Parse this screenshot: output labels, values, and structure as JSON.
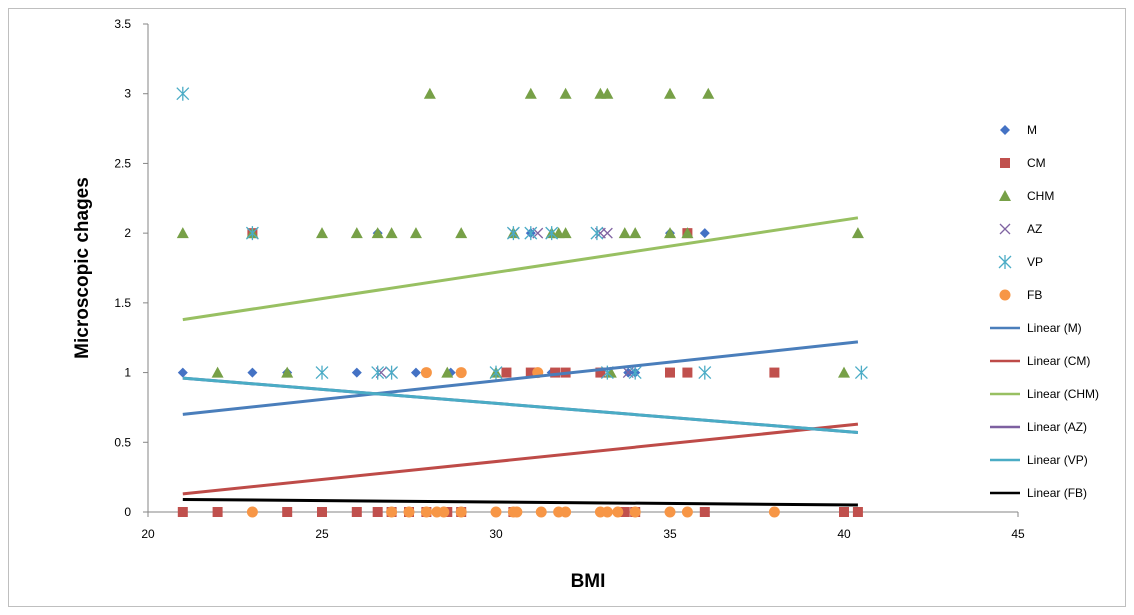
{
  "chart_data": {
    "type": "scatter",
    "title": "",
    "xlabel": "BMI",
    "ylabel": "Microscopic chages",
    "xlim": [
      20,
      45
    ],
    "ylim": [
      0,
      3.5
    ],
    "xticks": [
      20,
      25,
      30,
      35,
      40,
      45
    ],
    "yticks": [
      0,
      0.5,
      1,
      1.5,
      2,
      2.5,
      3,
      3.5
    ],
    "xtick_labels": [
      "20",
      "25",
      "30",
      "35",
      "40",
      "45"
    ],
    "ytick_labels": [
      "0",
      "0.5",
      "1",
      "1.5",
      "2",
      "2.5",
      "3",
      "3.5"
    ],
    "grid": false,
    "legend_position": "right",
    "series": [
      {
        "name": "M",
        "marker": "diamond",
        "color": "#4472c4",
        "points": [
          [
            21,
            1
          ],
          [
            23,
            1
          ],
          [
            24,
            1
          ],
          [
            26,
            1
          ],
          [
            26.6,
            2
          ],
          [
            27.7,
            1
          ],
          [
            28.7,
            1
          ],
          [
            30.3,
            1
          ],
          [
            31,
            2
          ],
          [
            31.6,
            1
          ],
          [
            33,
            1
          ],
          [
            33.8,
            1
          ],
          [
            34,
            1
          ],
          [
            35,
            2
          ],
          [
            36,
            2
          ]
        ]
      },
      {
        "name": "CM",
        "marker": "square",
        "color": "#c0504d",
        "points": [
          [
            21,
            0
          ],
          [
            22,
            0
          ],
          [
            23,
            2
          ],
          [
            24,
            0
          ],
          [
            25,
            0
          ],
          [
            26,
            0
          ],
          [
            26.6,
            0
          ],
          [
            27,
            0
          ],
          [
            27.5,
            0
          ],
          [
            28,
            0
          ],
          [
            28.6,
            0
          ],
          [
            29,
            0
          ],
          [
            30.3,
            1
          ],
          [
            30.5,
            0
          ],
          [
            31,
            1
          ],
          [
            31.7,
            1
          ],
          [
            32,
            1
          ],
          [
            33,
            1
          ],
          [
            33.7,
            0
          ],
          [
            34,
            0
          ],
          [
            35,
            1
          ],
          [
            35.5,
            2
          ],
          [
            35.5,
            1
          ],
          [
            36,
            0
          ],
          [
            38,
            1
          ],
          [
            40,
            0
          ],
          [
            40.4,
            0
          ]
        ]
      },
      {
        "name": "CHM",
        "marker": "triangle",
        "color": "#77a047",
        "points": [
          [
            21,
            2
          ],
          [
            22,
            1
          ],
          [
            23,
            2
          ],
          [
            24,
            1
          ],
          [
            25,
            2
          ],
          [
            26,
            2
          ],
          [
            26.6,
            2
          ],
          [
            27,
            2
          ],
          [
            27.7,
            2
          ],
          [
            28.1,
            3
          ],
          [
            28.6,
            1
          ],
          [
            29,
            2
          ],
          [
            30,
            1
          ],
          [
            30.5,
            2
          ],
          [
            31,
            3
          ],
          [
            31.6,
            2
          ],
          [
            31.8,
            2
          ],
          [
            32,
            3
          ],
          [
            32,
            2
          ],
          [
            33,
            3
          ],
          [
            33.2,
            3
          ],
          [
            33.3,
            1
          ],
          [
            33.7,
            2
          ],
          [
            34,
            2
          ],
          [
            35,
            3
          ],
          [
            35,
            2
          ],
          [
            35.5,
            2
          ],
          [
            36.1,
            3
          ],
          [
            40,
            1
          ],
          [
            40.4,
            2
          ]
        ]
      },
      {
        "name": "AZ",
        "marker": "x",
        "color": "#8064a2",
        "points": [
          [
            26.7,
            1
          ],
          [
            27,
            1
          ],
          [
            30.5,
            2
          ],
          [
            31.2,
            2
          ],
          [
            33,
            2
          ],
          [
            33.2,
            2
          ],
          [
            33.8,
            1
          ]
        ]
      },
      {
        "name": "VP",
        "marker": "star",
        "color": "#4bacc6",
        "points": [
          [
            21,
            3
          ],
          [
            23,
            2
          ],
          [
            25,
            1
          ],
          [
            26.6,
            1
          ],
          [
            27,
            1
          ],
          [
            30,
            1
          ],
          [
            30.5,
            2
          ],
          [
            31,
            2
          ],
          [
            31.6,
            2
          ],
          [
            32.9,
            2
          ],
          [
            33.2,
            1
          ],
          [
            34,
            1
          ],
          [
            36,
            1
          ],
          [
            40.5,
            1
          ]
        ]
      },
      {
        "name": "FB",
        "marker": "circle",
        "color": "#f79646",
        "points": [
          [
            23,
            0
          ],
          [
            27,
            0
          ],
          [
            27.5,
            0
          ],
          [
            28,
            1
          ],
          [
            28,
            0
          ],
          [
            28.3,
            0
          ],
          [
            28.5,
            0
          ],
          [
            29,
            1
          ],
          [
            29,
            0
          ],
          [
            30,
            0
          ],
          [
            30.5,
            0
          ],
          [
            30.6,
            0
          ],
          [
            31.2,
            1
          ],
          [
            31.3,
            0
          ],
          [
            31.8,
            0
          ],
          [
            32,
            0
          ],
          [
            33,
            0
          ],
          [
            33.2,
            0
          ],
          [
            33.5,
            0
          ],
          [
            34,
            0
          ],
          [
            35,
            0
          ],
          [
            35.5,
            0
          ],
          [
            38,
            0
          ]
        ]
      }
    ],
    "trendlines": [
      {
        "name": "Linear (M)",
        "color": "#4a7ebb",
        "x": [
          21,
          40.4
        ],
        "y": [
          0.7,
          1.22
        ],
        "width": 3
      },
      {
        "name": "Linear (CM)",
        "color": "#be4b48",
        "x": [
          21,
          40.4
        ],
        "y": [
          0.13,
          0.63
        ],
        "width": 3
      },
      {
        "name": "Linear (CHM)",
        "color": "#98c062",
        "x": [
          21,
          40.4
        ],
        "y": [
          1.38,
          2.11
        ],
        "width": 3
      },
      {
        "name": "Linear (AZ)",
        "color": "#7d60a0",
        "x": [
          21,
          40.4
        ],
        "y": [
          0.96,
          0.57
        ],
        "width": 3
      },
      {
        "name": "Linear (VP)",
        "color": "#4aacc5",
        "x": [
          21,
          40.4
        ],
        "y": [
          0.96,
          0.57
        ],
        "width": 3
      },
      {
        "name": "Linear (FB)",
        "color": "#000000",
        "x": [
          21,
          40.4
        ],
        "y": [
          0.09,
          0.05
        ],
        "width": 3
      }
    ]
  }
}
